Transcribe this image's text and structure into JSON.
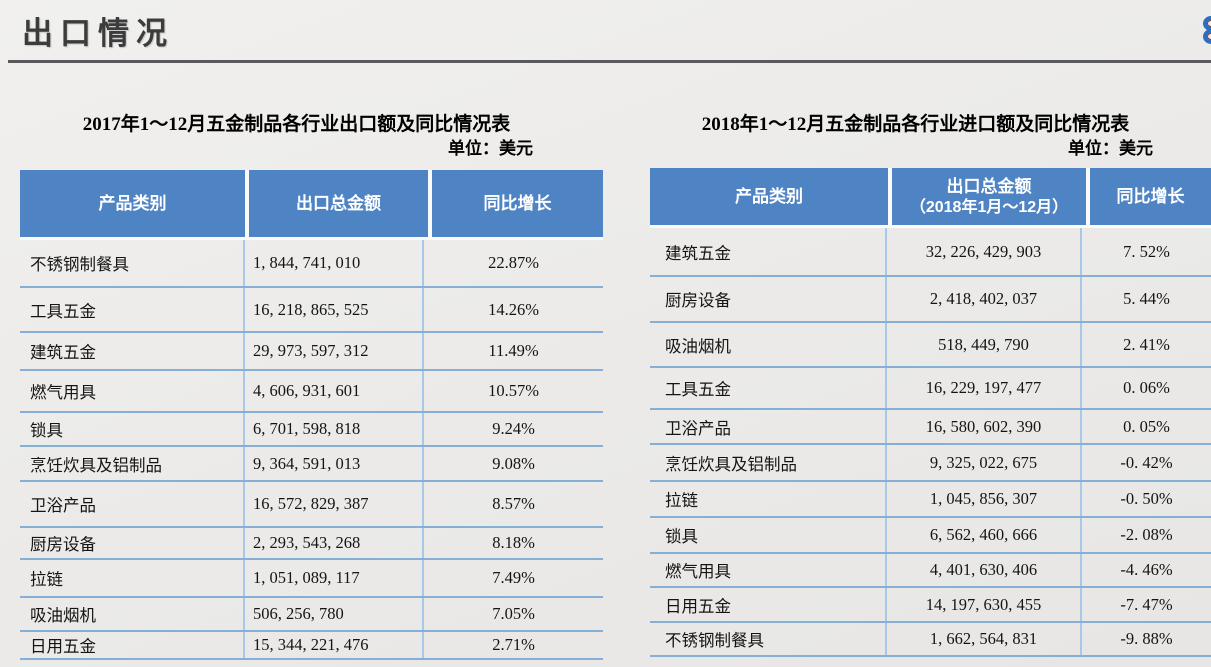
{
  "page": {
    "title": "出口情况"
  },
  "colors": {
    "header_bg": "#4f84c4",
    "grid_horizontal": "#86afd8",
    "grid_vertical": "#a9c7e6",
    "title_text": "#3c3c3c",
    "rule": "#5a5a5c",
    "corner_glyph_blue": "#2a6fc2"
  },
  "icons": {
    "corner": "rings-icon"
  },
  "left_table": {
    "title": "2017年1～12月五金制品各行业出口额及同比情况表",
    "unit": "单位：美元",
    "headers": {
      "col1": "产品类别",
      "col2": "出口总金额",
      "col3": "同比增长"
    },
    "rows": [
      {
        "category": "不锈钢制餐具",
        "amount": "1, 844, 741, 010",
        "growth": "22.87%"
      },
      {
        "category": "工具五金",
        "amount": "16, 218, 865, 525",
        "growth": "14.26%"
      },
      {
        "category": "建筑五金",
        "amount": "29, 973, 597, 312",
        "growth": "11.49%"
      },
      {
        "category": "燃气用具",
        "amount": "4, 606, 931, 601",
        "growth": "10.57%"
      },
      {
        "category": "锁具",
        "amount": "6, 701, 598, 818",
        "growth": "9.24%"
      },
      {
        "category": "烹饪炊具及铝制品",
        "amount": "9, 364, 591, 013",
        "growth": "9.08%"
      },
      {
        "category": "卫浴产品",
        "amount": "16, 572, 829, 387",
        "growth": "8.57%"
      },
      {
        "category": "厨房设备",
        "amount": "2, 293, 543, 268",
        "growth": "8.18%"
      },
      {
        "category": "拉链",
        "amount": "1, 051, 089, 117",
        "growth": "7.49%"
      },
      {
        "category": "吸油烟机",
        "amount": "506, 256, 780",
        "growth": "7.05%"
      },
      {
        "category": "日用五金",
        "amount": "15, 344, 221, 476",
        "growth": "2.71%"
      }
    ]
  },
  "right_table": {
    "title": "2018年1～12月五金制品各行业进口额及同比情况表",
    "unit": "单位：美元",
    "headers": {
      "col1": "产品类别",
      "col2_line1": "出口总金额",
      "col2_line2": "（2018年1月～12月）",
      "col3": "同比增长"
    },
    "rows": [
      {
        "category": "建筑五金",
        "amount": "32, 226, 429, 903",
        "growth": "7. 52%"
      },
      {
        "category": "厨房设备",
        "amount": "2, 418, 402, 037",
        "growth": "5. 44%"
      },
      {
        "category": "吸油烟机",
        "amount": "518, 449, 790",
        "growth": "2. 41%"
      },
      {
        "category": "工具五金",
        "amount": "16, 229, 197, 477",
        "growth": "0. 06%"
      },
      {
        "category": "卫浴产品",
        "amount": "16, 580, 602, 390",
        "growth": "0. 05%"
      },
      {
        "category": "烹饪炊具及铝制品",
        "amount": "9, 325, 022, 675",
        "growth": "-0. 42%"
      },
      {
        "category": "拉链",
        "amount": "1, 045, 856, 307",
        "growth": "-0. 50%"
      },
      {
        "category": "锁具",
        "amount": "6, 562, 460, 666",
        "growth": "-2. 08%"
      },
      {
        "category": "燃气用具",
        "amount": "4, 401, 630, 406",
        "growth": "-4. 46%"
      },
      {
        "category": "日用五金",
        "amount": "14, 197, 630, 455",
        "growth": "-7. 47%"
      },
      {
        "category": "不锈钢制餐具",
        "amount": "1, 662, 564, 831",
        "growth": "-9. 88%"
      }
    ]
  }
}
